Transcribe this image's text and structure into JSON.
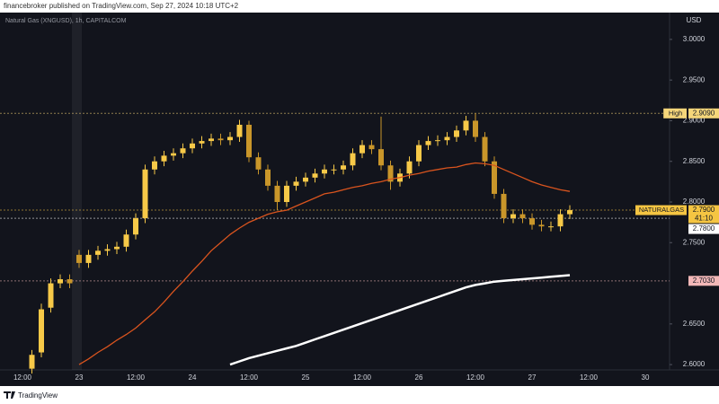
{
  "header": {
    "publisher": "financebroker published on TradingView.com, Sep 27, 2024 10:18 UTC+2",
    "brand": "TradingView"
  },
  "chart_data": {
    "type": "candlestick",
    "title": "Natural Gas (XNGUSD), 1h, CAPITALCOM",
    "y_axis_label": "USD",
    "categories": [
      null,
      null,
      "12:00",
      null,
      null,
      null,
      null,
      null,
      "23",
      null,
      null,
      null,
      null,
      null,
      "12:00",
      null,
      null,
      null,
      null,
      null,
      "24",
      null,
      null,
      null,
      null,
      null,
      "12:00",
      null,
      null,
      null,
      null,
      null,
      "25",
      null,
      null,
      null,
      null,
      null,
      "12:00",
      null,
      null,
      null,
      null,
      null,
      "26",
      null,
      null,
      null,
      null,
      null,
      "12:00",
      null,
      null,
      null,
      null,
      null,
      "27",
      null,
      null,
      null,
      null,
      null,
      "12:00",
      null,
      null,
      null,
      null,
      null,
      "30",
      null
    ],
    "open": [
      null,
      null,
      null,
      2.595,
      2.615,
      2.67,
      2.7,
      2.705,
      2.735,
      2.725,
      2.735,
      2.74,
      2.742,
      2.745,
      2.76,
      2.78,
      2.84,
      2.85,
      2.857,
      2.86,
      2.866,
      2.872,
      2.875,
      2.878,
      2.876,
      2.88,
      2.895,
      2.855,
      2.84,
      2.82,
      2.8,
      2.82,
      2.825,
      2.83,
      2.835,
      2.84,
      2.84,
      2.845,
      2.86,
      2.87,
      2.865,
      2.845,
      2.825,
      2.835,
      2.85,
      2.87,
      2.875,
      2.876,
      2.88,
      2.888,
      2.9,
      2.88,
      2.85,
      2.81,
      2.78,
      2.785,
      2.78,
      2.772,
      2.77,
      2.77,
      2.785,
      null,
      null,
      null,
      null,
      null,
      null,
      null,
      null,
      null
    ],
    "high": [
      null,
      null,
      null,
      2.618,
      2.675,
      2.706,
      2.711,
      2.711,
      2.741,
      2.741,
      2.746,
      2.748,
      2.751,
      2.766,
      2.786,
      2.846,
      2.856,
      2.863,
      2.866,
      2.872,
      2.878,
      2.881,
      2.884,
      2.884,
      2.886,
      2.901,
      2.9,
      2.861,
      2.846,
      2.826,
      2.826,
      2.831,
      2.836,
      2.841,
      2.846,
      2.846,
      2.851,
      2.866,
      2.876,
      2.876,
      2.905,
      2.851,
      2.841,
      2.856,
      2.876,
      2.881,
      2.882,
      2.886,
      2.894,
      2.906,
      2.909,
      2.886,
      2.856,
      2.816,
      2.791,
      2.791,
      2.786,
      2.778,
      2.776,
      2.791,
      2.796,
      null,
      null,
      null,
      null,
      null,
      null,
      null,
      null,
      null
    ],
    "low": [
      null,
      null,
      null,
      2.589,
      2.609,
      2.664,
      2.694,
      2.694,
      2.719,
      2.719,
      2.729,
      2.734,
      2.736,
      2.739,
      2.754,
      2.774,
      2.834,
      2.844,
      2.851,
      2.854,
      2.86,
      2.866,
      2.869,
      2.87,
      2.87,
      2.874,
      2.849,
      2.834,
      2.814,
      2.79,
      2.794,
      2.814,
      2.819,
      2.824,
      2.829,
      2.834,
      2.834,
      2.839,
      2.854,
      2.859,
      2.839,
      2.815,
      2.819,
      2.829,
      2.844,
      2.864,
      2.869,
      2.87,
      2.874,
      2.882,
      2.874,
      2.844,
      2.804,
      2.774,
      2.774,
      2.774,
      2.766,
      2.764,
      2.764,
      2.764,
      2.779,
      null,
      null,
      null,
      null,
      null,
      null,
      null,
      null,
      null
    ],
    "close": [
      null,
      null,
      null,
      2.612,
      2.668,
      2.7,
      2.705,
      2.7,
      2.725,
      2.735,
      2.74,
      2.742,
      2.745,
      2.76,
      2.78,
      2.84,
      2.85,
      2.857,
      2.86,
      2.866,
      2.872,
      2.875,
      2.878,
      2.876,
      2.88,
      2.895,
      2.855,
      2.84,
      2.82,
      2.8,
      2.82,
      2.825,
      2.83,
      2.835,
      2.84,
      2.84,
      2.845,
      2.86,
      2.87,
      2.865,
      2.845,
      2.825,
      2.835,
      2.85,
      2.87,
      2.875,
      2.876,
      2.88,
      2.888,
      2.9,
      2.88,
      2.85,
      2.81,
      2.78,
      2.785,
      2.78,
      2.772,
      2.77,
      2.77,
      2.785,
      2.79,
      null,
      null,
      null,
      null,
      null,
      null,
      null,
      null,
      null
    ],
    "up_color": "#f7c948",
    "down_color": "#c9962a",
    "moving_averages": [
      {
        "color": "#d9541e",
        "values": [
          null,
          null,
          null,
          null,
          null,
          null,
          null,
          null,
          2.6,
          2.607,
          2.615,
          2.622,
          2.63,
          2.637,
          2.645,
          2.655,
          2.665,
          2.677,
          2.69,
          2.702,
          2.715,
          2.727,
          2.74,
          2.75,
          2.76,
          2.768,
          2.775,
          2.78,
          2.785,
          2.788,
          2.79,
          2.795,
          2.8,
          2.805,
          2.81,
          2.812,
          2.815,
          2.818,
          2.82,
          2.823,
          2.825,
          2.828,
          2.83,
          2.833,
          2.835,
          2.838,
          2.84,
          2.842,
          2.843,
          2.846,
          2.848,
          2.847,
          2.845,
          2.84,
          2.835,
          2.83,
          2.825,
          2.821,
          2.818,
          2.815,
          2.813,
          null,
          null,
          null,
          null,
          null,
          null,
          null,
          null,
          null
        ]
      },
      {
        "color": "#ffffff",
        "values": [
          null,
          null,
          null,
          null,
          null,
          null,
          null,
          null,
          null,
          null,
          null,
          null,
          null,
          null,
          null,
          null,
          null,
          null,
          null,
          null,
          null,
          null,
          null,
          null,
          2.6,
          2.604,
          2.608,
          2.611,
          2.614,
          2.617,
          2.62,
          2.623,
          2.627,
          2.631,
          2.635,
          2.639,
          2.643,
          2.647,
          2.651,
          2.655,
          2.659,
          2.663,
          2.667,
          2.671,
          2.675,
          2.679,
          2.683,
          2.687,
          2.691,
          2.695,
          2.698,
          2.7,
          2.702,
          2.703,
          2.704,
          2.705,
          2.706,
          2.707,
          2.708,
          2.709,
          2.71,
          null,
          null,
          null,
          null,
          null,
          null,
          null,
          null,
          null
        ]
      }
    ],
    "levels": [
      {
        "name": "High",
        "value": 2.909,
        "label": "2.9090",
        "color": "#f5d67a"
      },
      {
        "name": "NATURALGAS",
        "value": 2.79,
        "label": "2.7900",
        "countdown": "41:10",
        "color": "#f5c542"
      },
      {
        "value": 2.78,
        "label": "2.7800",
        "color": "#ffffff"
      },
      {
        "value": 2.703,
        "label": "2.7030",
        "color": "#f3b8b8"
      }
    ],
    "ylim": [
      2.5935,
      3.033
    ],
    "yticks": [
      {
        "value": 3.0,
        "label": "3.0000"
      },
      {
        "value": 2.95,
        "label": "2.9500"
      },
      {
        "value": 2.9,
        "label": "2.9000"
      },
      {
        "value": 2.85,
        "label": "2.8500"
      },
      {
        "value": 2.8,
        "label": "2.8000"
      },
      {
        "value": 2.75,
        "label": "2.7500"
      },
      {
        "value": 2.65,
        "label": "2.6500"
      },
      {
        "value": 2.6,
        "label": "2.6000"
      }
    ]
  }
}
